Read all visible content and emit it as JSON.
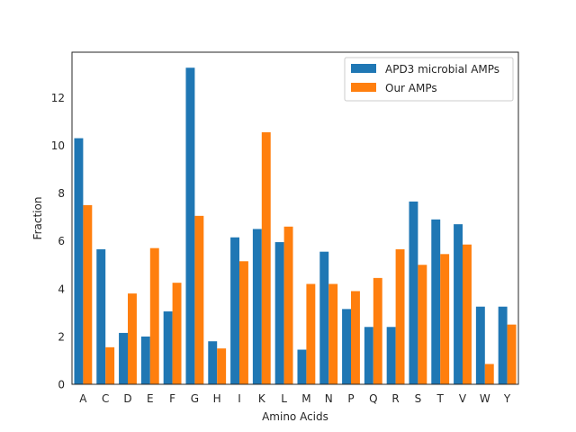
{
  "chart_data": {
    "type": "bar",
    "title": "",
    "xlabel": "Amino Acids",
    "ylabel": "Fraction",
    "ylim": [
      0,
      13.9
    ],
    "yticks": [
      0,
      2,
      4,
      6,
      8,
      10,
      12
    ],
    "grid": false,
    "legend_position": "top-right",
    "categories": [
      "A",
      "C",
      "D",
      "E",
      "F",
      "G",
      "H",
      "I",
      "K",
      "L",
      "M",
      "N",
      "P",
      "Q",
      "R",
      "S",
      "T",
      "V",
      "W",
      "Y"
    ],
    "series": [
      {
        "name": "APD3 microbial AMPs",
        "color": "#1f77b4",
        "values": [
          10.3,
          5.65,
          2.15,
          2.0,
          3.05,
          13.25,
          1.8,
          6.15,
          6.5,
          5.95,
          1.45,
          5.55,
          3.15,
          2.4,
          2.4,
          7.65,
          6.9,
          6.7,
          3.25,
          3.25
        ]
      },
      {
        "name": "Our AMPs",
        "color": "#ff7f0e",
        "values": [
          7.5,
          1.55,
          3.8,
          5.7,
          4.25,
          7.05,
          1.5,
          5.15,
          10.55,
          6.6,
          4.2,
          4.2,
          3.9,
          4.45,
          5.65,
          5.0,
          5.45,
          5.85,
          0.85,
          2.5
        ]
      }
    ]
  }
}
